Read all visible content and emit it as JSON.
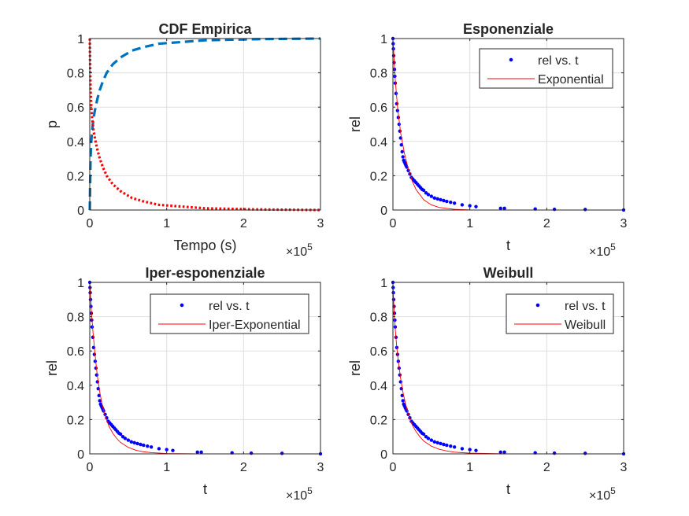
{
  "chart_data": [
    {
      "type": "line",
      "title": "CDF Empirica",
      "xlabel": "Tempo (s)",
      "ylabel": "p",
      "x_exponent_label": "×10^5",
      "xlim": [
        0,
        300000
      ],
      "ylim": [
        0,
        1
      ],
      "xticks": [
        0,
        100000,
        200000,
        300000
      ],
      "xtick_labels": [
        "0",
        "1",
        "2",
        "3"
      ],
      "yticks": [
        0,
        0.2,
        0.4,
        0.6,
        0.8,
        1
      ],
      "ytick_labels": [
        "0",
        "0.2",
        "0.4",
        "0.6",
        "0.8",
        "1"
      ],
      "grid": true,
      "series": [
        {
          "color": "#0072BD",
          "style": "dashed",
          "x": [
            0,
            1000,
            2000,
            3000,
            5000,
            7500,
            10000,
            13000,
            17000,
            22000,
            30000,
            40000,
            55000,
            70000,
            90000,
            120000,
            150000,
            180000,
            210000,
            250000,
            300000
          ],
          "y": [
            0,
            0.3,
            0.4,
            0.46,
            0.54,
            0.6,
            0.65,
            0.7,
            0.75,
            0.8,
            0.85,
            0.89,
            0.93,
            0.95,
            0.97,
            0.98,
            0.99,
            0.993,
            0.996,
            0.998,
            1
          ]
        },
        {
          "color": "#FF0000",
          "style": "dotted",
          "x": [
            0,
            1000,
            2000,
            3000,
            5000,
            7500,
            10000,
            13000,
            17000,
            22000,
            30000,
            40000,
            55000,
            70000,
            90000,
            120000,
            150000,
            180000,
            210000,
            250000,
            300000
          ],
          "y": [
            1,
            0.7,
            0.6,
            0.54,
            0.46,
            0.4,
            0.35,
            0.3,
            0.25,
            0.2,
            0.15,
            0.11,
            0.07,
            0.05,
            0.03,
            0.02,
            0.01,
            0.007,
            0.004,
            0.002,
            0
          ]
        }
      ]
    },
    {
      "type": "scatter",
      "title": "Esponenziale",
      "xlabel": "t",
      "ylabel": "rel",
      "x_exponent_label": "×10^5",
      "xlim": [
        0,
        300000
      ],
      "ylim": [
        0,
        1
      ],
      "xticks": [
        0,
        100000,
        200000,
        300000
      ],
      "xtick_labels": [
        "0",
        "1",
        "2",
        "3"
      ],
      "yticks": [
        0,
        0.2,
        0.4,
        0.6,
        0.8,
        1
      ],
      "ytick_labels": [
        "0",
        "0.2",
        "0.4",
        "0.6",
        "0.8",
        "1"
      ],
      "grid": true,
      "legend": "top-right",
      "series": [
        {
          "name": "rel vs. t",
          "marker": "dot",
          "color": "#0000FF",
          "x": [
            0,
            300,
            600,
            1000,
            1500,
            2000,
            2500,
            3000,
            4000,
            5000,
            6000,
            7000,
            8000,
            9000,
            10000,
            11000,
            12000,
            13000,
            14000,
            15000,
            16000,
            17000,
            18000,
            20000,
            22000,
            24000,
            26000,
            28000,
            30000,
            32000,
            34000,
            36000,
            38000,
            40000,
            43000,
            46000,
            50000,
            54000,
            58000,
            62000,
            66000,
            70000,
            75000,
            80000,
            90000,
            100000,
            108000,
            140000,
            145000,
            185000,
            210000,
            250000,
            300000
          ],
          "y": [
            1,
            0.97,
            0.94,
            0.9,
            0.86,
            0.82,
            0.78,
            0.74,
            0.68,
            0.62,
            0.58,
            0.54,
            0.5,
            0.46,
            0.42,
            0.38,
            0.34,
            0.31,
            0.29,
            0.28,
            0.27,
            0.26,
            0.25,
            0.23,
            0.21,
            0.19,
            0.18,
            0.17,
            0.16,
            0.15,
            0.14,
            0.13,
            0.12,
            0.115,
            0.1,
            0.09,
            0.08,
            0.07,
            0.065,
            0.06,
            0.055,
            0.05,
            0.045,
            0.04,
            0.03,
            0.025,
            0.02,
            0.01,
            0.01,
            0.006,
            0.004,
            0.003,
            0
          ]
        },
        {
          "name": "Exponential",
          "marker": "line",
          "color": "#FF0000",
          "x": [
            0,
            3000,
            6000,
            10000,
            15000,
            20000,
            25000,
            30000,
            40000,
            50000,
            60000,
            80000,
            100000,
            150000,
            200000,
            300000
          ],
          "y": [
            1,
            0.76,
            0.6,
            0.45,
            0.33,
            0.24,
            0.17,
            0.12,
            0.06,
            0.03,
            0.015,
            0.004,
            0.001,
            0,
            0,
            0
          ]
        }
      ]
    },
    {
      "type": "scatter",
      "title": "Iper-esponenziale",
      "xlabel": "t",
      "ylabel": "rel",
      "x_exponent_label": "×10^5",
      "xlim": [
        0,
        300000
      ],
      "ylim": [
        0,
        1
      ],
      "xticks": [
        0,
        100000,
        200000,
        300000
      ],
      "xtick_labels": [
        "0",
        "1",
        "2",
        "3"
      ],
      "yticks": [
        0,
        0.2,
        0.4,
        0.6,
        0.8,
        1
      ],
      "ytick_labels": [
        "0",
        "0.2",
        "0.4",
        "0.6",
        "0.8",
        "1"
      ],
      "grid": true,
      "legend": "top-right",
      "series": [
        {
          "name": "rel vs. t",
          "marker": "dot",
          "color": "#0000FF",
          "x": [
            0,
            300,
            600,
            1000,
            1500,
            2000,
            2500,
            3000,
            4000,
            5000,
            6000,
            7000,
            8000,
            9000,
            10000,
            11000,
            12000,
            13000,
            14000,
            15000,
            16000,
            17000,
            18000,
            20000,
            22000,
            24000,
            26000,
            28000,
            30000,
            32000,
            34000,
            36000,
            38000,
            40000,
            43000,
            46000,
            50000,
            54000,
            58000,
            62000,
            66000,
            70000,
            75000,
            80000,
            90000,
            100000,
            108000,
            140000,
            145000,
            185000,
            210000,
            250000,
            300000
          ],
          "y": [
            1,
            0.97,
            0.94,
            0.9,
            0.86,
            0.82,
            0.78,
            0.74,
            0.68,
            0.62,
            0.58,
            0.54,
            0.5,
            0.46,
            0.42,
            0.38,
            0.34,
            0.31,
            0.29,
            0.28,
            0.27,
            0.26,
            0.25,
            0.23,
            0.21,
            0.19,
            0.18,
            0.17,
            0.16,
            0.15,
            0.14,
            0.13,
            0.12,
            0.115,
            0.1,
            0.09,
            0.08,
            0.07,
            0.065,
            0.06,
            0.055,
            0.05,
            0.045,
            0.04,
            0.03,
            0.025,
            0.02,
            0.01,
            0.01,
            0.006,
            0.004,
            0.003,
            0
          ]
        },
        {
          "name": "Iper-Exponential",
          "marker": "line",
          "color": "#FF0000",
          "x": [
            0,
            2000,
            4000,
            6000,
            8000,
            10000,
            13000,
            16000,
            20000,
            25000,
            30000,
            35000,
            40000,
            50000,
            60000,
            70000,
            80000,
            100000,
            150000,
            200000,
            300000
          ],
          "y": [
            1,
            0.84,
            0.72,
            0.62,
            0.53,
            0.45,
            0.36,
            0.29,
            0.22,
            0.16,
            0.12,
            0.09,
            0.067,
            0.038,
            0.021,
            0.012,
            0.007,
            0.002,
            0,
            0,
            0
          ]
        }
      ]
    },
    {
      "type": "scatter",
      "title": "Weibull",
      "xlabel": "t",
      "ylabel": "rel",
      "x_exponent_label": "×10^5",
      "xlim": [
        0,
        300000
      ],
      "ylim": [
        0,
        1
      ],
      "xticks": [
        0,
        100000,
        200000,
        300000
      ],
      "xtick_labels": [
        "0",
        "1",
        "2",
        "3"
      ],
      "yticks": [
        0,
        0.2,
        0.4,
        0.6,
        0.8,
        1
      ],
      "ytick_labels": [
        "0",
        "0.2",
        "0.4",
        "0.6",
        "0.8",
        "1"
      ],
      "grid": true,
      "legend": "top-right",
      "series": [
        {
          "name": "rel vs. t",
          "marker": "dot",
          "color": "#0000FF",
          "x": [
            0,
            300,
            600,
            1000,
            1500,
            2000,
            2500,
            3000,
            4000,
            5000,
            6000,
            7000,
            8000,
            9000,
            10000,
            11000,
            12000,
            13000,
            14000,
            15000,
            16000,
            17000,
            18000,
            20000,
            22000,
            24000,
            26000,
            28000,
            30000,
            32000,
            34000,
            36000,
            38000,
            40000,
            43000,
            46000,
            50000,
            54000,
            58000,
            62000,
            66000,
            70000,
            75000,
            80000,
            90000,
            100000,
            108000,
            140000,
            145000,
            185000,
            210000,
            250000,
            300000
          ],
          "y": [
            1,
            0.97,
            0.94,
            0.9,
            0.86,
            0.82,
            0.78,
            0.74,
            0.68,
            0.62,
            0.58,
            0.54,
            0.5,
            0.46,
            0.42,
            0.38,
            0.34,
            0.31,
            0.29,
            0.28,
            0.27,
            0.26,
            0.25,
            0.23,
            0.21,
            0.19,
            0.18,
            0.17,
            0.16,
            0.15,
            0.14,
            0.13,
            0.12,
            0.115,
            0.1,
            0.09,
            0.08,
            0.07,
            0.065,
            0.06,
            0.055,
            0.05,
            0.045,
            0.04,
            0.03,
            0.025,
            0.02,
            0.01,
            0.01,
            0.006,
            0.004,
            0.003,
            0
          ]
        },
        {
          "name": "Weibull",
          "marker": "line",
          "color": "#FF0000",
          "x": [
            0,
            1000,
            2000,
            3000,
            5000,
            7000,
            10000,
            13000,
            16000,
            20000,
            25000,
            30000,
            35000,
            40000,
            50000,
            60000,
            70000,
            80000,
            100000,
            150000,
            200000,
            300000
          ],
          "y": [
            1,
            0.88,
            0.8,
            0.73,
            0.62,
            0.54,
            0.44,
            0.36,
            0.3,
            0.23,
            0.17,
            0.13,
            0.1,
            0.075,
            0.045,
            0.027,
            0.017,
            0.01,
            0.004,
            0,
            0,
            0
          ]
        }
      ]
    }
  ]
}
